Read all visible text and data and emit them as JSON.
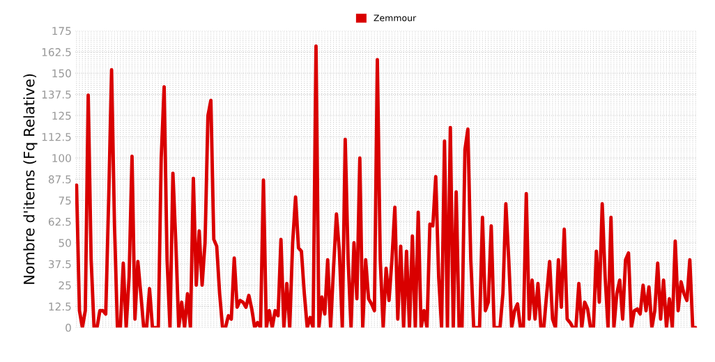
{
  "chart_data": {
    "type": "line",
    "ylabel": "Nombre d'items (Fq Relative)",
    "categories": [
      null,
      null,
      null,
      null,
      null,
      null,
      null,
      null,
      null,
      null,
      null,
      null,
      null,
      null,
      null,
      null,
      null,
      null,
      null,
      null,
      null,
      null,
      null,
      null,
      null,
      null,
      null,
      null,
      null,
      null,
      null,
      null,
      null,
      null,
      null,
      null,
      null,
      null,
      null,
      null,
      null,
      null,
      null,
      null,
      null,
      null,
      null,
      null,
      null,
      null,
      null,
      null,
      null,
      null,
      null,
      null,
      null,
      null,
      null,
      null,
      null,
      null,
      null,
      null,
      null,
      null,
      null,
      null,
      null,
      null,
      null,
      null,
      null,
      null,
      null,
      null,
      null,
      null,
      null,
      null,
      null,
      null,
      null,
      null,
      null,
      null,
      null,
      null,
      null,
      null,
      null,
      null,
      null,
      null,
      null,
      null,
      null,
      null,
      null,
      null,
      null,
      null,
      null,
      null,
      null,
      null,
      null,
      null,
      null,
      null,
      null,
      null,
      null,
      null,
      null,
      null,
      null,
      null,
      null,
      null,
      null,
      null,
      null,
      null,
      null,
      null,
      null,
      null,
      null,
      null,
      null,
      null,
      null,
      null,
      null,
      null,
      null,
      null,
      null,
      null,
      null,
      null,
      null,
      null,
      null,
      null,
      null,
      null,
      null,
      null,
      null,
      null,
      null,
      null,
      null,
      null,
      null,
      null,
      null,
      null,
      null,
      null,
      null,
      null,
      null,
      null,
      null,
      null,
      null,
      null,
      null,
      null,
      null,
      null,
      null,
      null,
      null,
      null,
      null,
      null,
      null,
      null,
      null,
      null,
      null,
      null,
      null,
      null,
      null,
      null,
      null,
      null,
      null,
      null,
      null,
      null,
      null,
      null,
      null,
      null,
      null,
      null,
      null,
      null,
      null,
      null,
      null,
      null,
      null,
      null,
      null,
      null,
      null
    ],
    "series": [
      {
        "name": "Zemmour",
        "color": "#d90000",
        "values": [
          84,
          10,
          0,
          10,
          137,
          40,
          0,
          0,
          10,
          10,
          8,
          75,
          152,
          60,
          0,
          0,
          38,
          0,
          30,
          101,
          5,
          39,
          20,
          0,
          0,
          23,
          0,
          0,
          0,
          100,
          142,
          40,
          0,
          91,
          50,
          0,
          15,
          0,
          20,
          0,
          88,
          25,
          57,
          25,
          50,
          125,
          134,
          52,
          48,
          20,
          0,
          0,
          7,
          5,
          41,
          12,
          16,
          15,
          12,
          19,
          11,
          0,
          3,
          0,
          87,
          0,
          10,
          0,
          10,
          7,
          52,
          0,
          26,
          0,
          50,
          77,
          47,
          45,
          20,
          0,
          6,
          0,
          166,
          0,
          18,
          8,
          40,
          0,
          35,
          67,
          45,
          0,
          111,
          40,
          0,
          50,
          17,
          100,
          0,
          40,
          17,
          14,
          10,
          158,
          40,
          0,
          35,
          16,
          40,
          71,
          5,
          48,
          0,
          45,
          0,
          54,
          0,
          68,
          0,
          10,
          0,
          61,
          60,
          89,
          30,
          0,
          110,
          0,
          118,
          0,
          80,
          0,
          0,
          105,
          117,
          40,
          0,
          0,
          0,
          65,
          10,
          15,
          60,
          0,
          0,
          0,
          20,
          73,
          40,
          0,
          10,
          14,
          0,
          0,
          79,
          5,
          28,
          5,
          26,
          0,
          0,
          20,
          39,
          5,
          0,
          40,
          12,
          58,
          5,
          3,
          0,
          0,
          26,
          0,
          15,
          11,
          0,
          0,
          45,
          15,
          73,
          30,
          0,
          65,
          0,
          20,
          28,
          5,
          40,
          44,
          0,
          10,
          11,
          8,
          25,
          10,
          24,
          0,
          10,
          38,
          5,
          28,
          0,
          17,
          0,
          51,
          10,
          27,
          20,
          16,
          40,
          0,
          0
        ]
      }
    ],
    "ylim": [
      0,
      175
    ],
    "yticks": [
      0,
      12.5,
      25,
      37.5,
      50,
      62.5,
      75,
      87.5,
      100,
      112.5,
      125,
      137.5,
      150,
      162.5,
      175
    ],
    "grid": true,
    "legend": "top",
    "marker": "none",
    "line_style": "solid"
  }
}
